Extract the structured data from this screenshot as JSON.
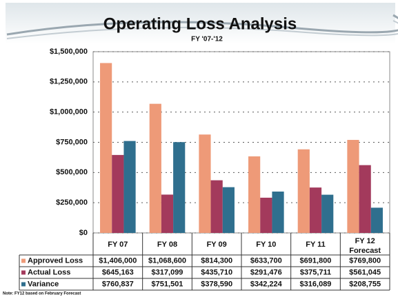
{
  "chart_data": {
    "type": "bar",
    "title": "Operating Loss Analysis",
    "subtitle": "FY '07-'12",
    "categories": [
      "FY 07",
      "FY 08",
      "FY 09",
      "FY 10",
      "FY 11",
      "FY 12 Forecast"
    ],
    "series": [
      {
        "name": "Approved Loss",
        "color": "#ee9a78",
        "values": [
          1406000,
          1068600,
          814300,
          633700,
          691800,
          769800
        ],
        "value_labels": [
          "$1,406,000",
          "$1,068,600",
          "$814,300",
          "$633,700",
          "$691,800",
          "$769,800"
        ]
      },
      {
        "name": "Actual Loss",
        "color": "#a33a5c",
        "values": [
          645163,
          317099,
          435710,
          291476,
          375711,
          561045
        ],
        "value_labels": [
          "$645,163",
          "$317,099",
          "$435,710",
          "$291,476",
          "$375,711",
          "$561,045"
        ]
      },
      {
        "name": "Variance",
        "color": "#2f6f8e",
        "values": [
          760837,
          751501,
          378590,
          342224,
          316089,
          208755
        ],
        "value_labels": [
          "$760,837",
          "$751,501",
          "$378,590",
          "$342,224",
          "$316,089",
          "$208,755"
        ]
      }
    ],
    "ylim": [
      0,
      1500000
    ],
    "yticks": [
      {
        "value": 0,
        "label": "$0"
      },
      {
        "value": 250000,
        "label": "$250,000"
      },
      {
        "value": 500000,
        "label": "$500,000"
      },
      {
        "value": 750000,
        "label": "$750,000"
      },
      {
        "value": 1000000,
        "label": "$1,000,000"
      },
      {
        "value": 1250000,
        "label": "$1,250,000"
      },
      {
        "value": 1500000,
        "label": "$1,500,000"
      }
    ],
    "grid": true,
    "note": "Note: FY12 based on February Forecast"
  }
}
